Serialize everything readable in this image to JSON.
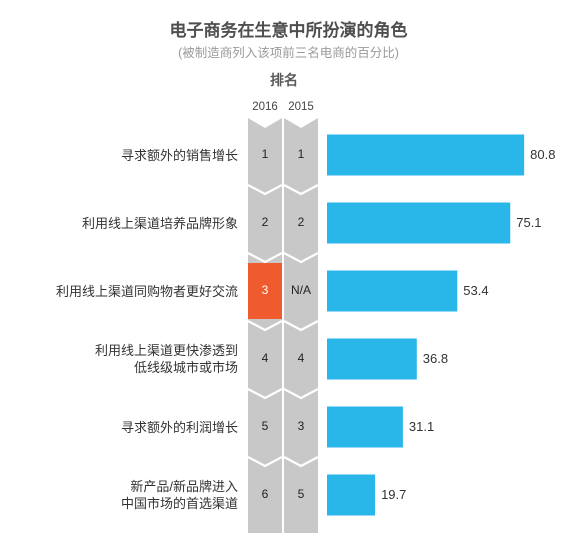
{
  "title": "电子商务在生意中所扮演的角色",
  "subtitle": "(被制造商列入该项前三名电商的百分比)",
  "rank_header": "排名",
  "years": [
    "2016",
    "2015"
  ],
  "colors": {
    "bar": "#29b6e8",
    "column": "#c8c8c8",
    "highlight": "#ef5a2f",
    "text": "#333333"
  },
  "chart_data": {
    "type": "bar",
    "orientation": "horizontal",
    "title": "电子商务在生意中所扮演的角色",
    "subtitle": "(被制造商列入该项前三名电商的百分比)",
    "categories": [
      [
        "寻求额外的销售增长"
      ],
      [
        "利用线上渠道培养品牌形象"
      ],
      [
        "利用线上渠道同购物者更好交流"
      ],
      [
        "利用线上渠道更快渗透到",
        "低线级城市或市场"
      ],
      [
        "寻求额外的利润增长"
      ],
      [
        "新产品/新品牌进入",
        "中国市场的首选渠道"
      ]
    ],
    "values": [
      80.8,
      75.1,
      53.4,
      36.8,
      31.1,
      19.7
    ],
    "value_labels": [
      "80.8",
      "75.1",
      "53.4",
      "36.8",
      "31.1",
      "19.7"
    ],
    "rank_2016": [
      "1",
      "2",
      "3",
      "4",
      "5",
      "6"
    ],
    "rank_2015": [
      "1",
      "2",
      "N/A",
      "4",
      "3",
      "5"
    ],
    "highlight_index": 2,
    "xlim": [
      0,
      100
    ],
    "grid": false,
    "legend": "none"
  }
}
